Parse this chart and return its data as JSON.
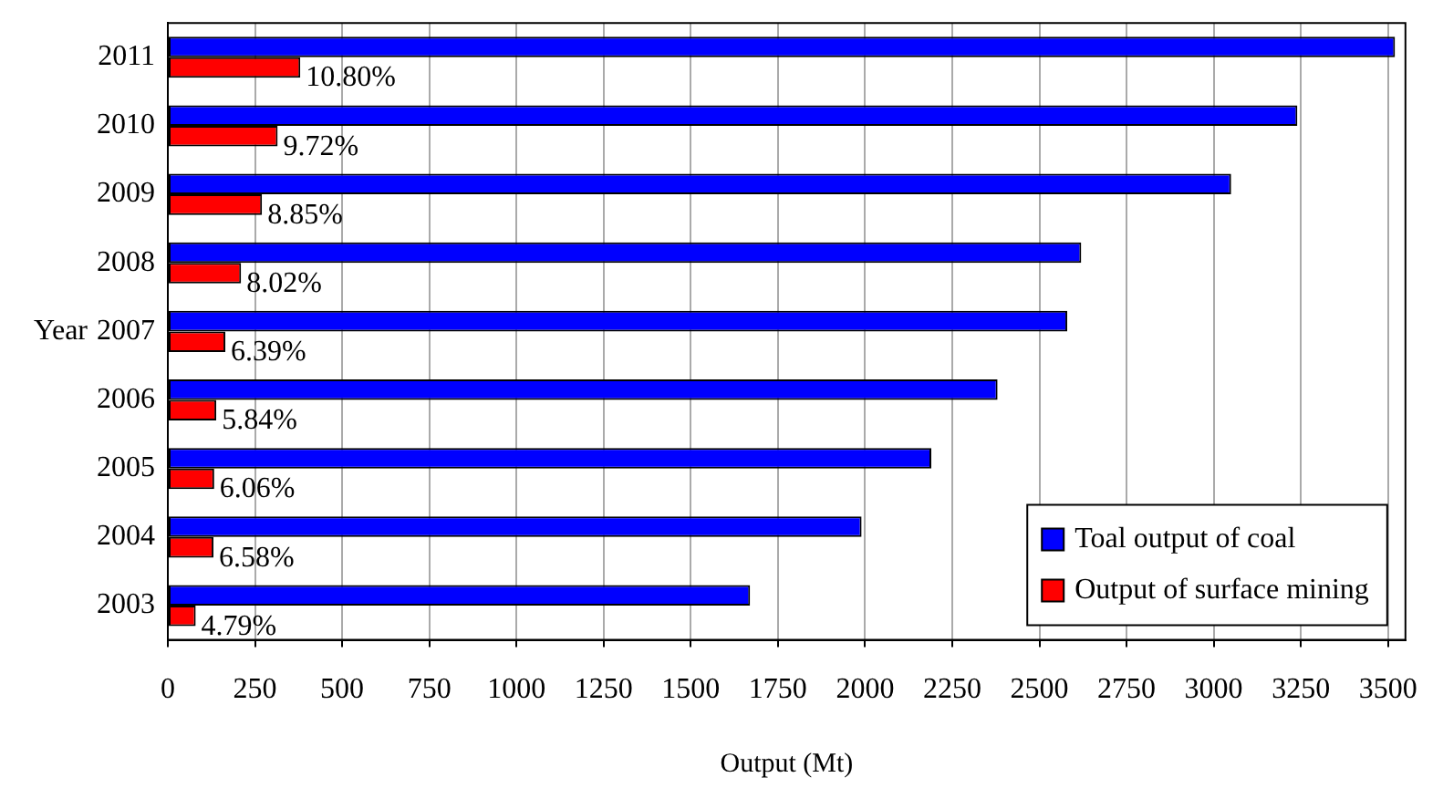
{
  "chart_data": {
    "type": "bar",
    "orientation": "horizontal",
    "xlabel": "Output (Mt)",
    "ylabel": "Year",
    "categories": [
      "2011",
      "2010",
      "2009",
      "2008",
      "2007",
      "2006",
      "2005",
      "2004",
      "2003"
    ],
    "series": [
      {
        "name": "Toal output of coal",
        "color": "#0000ff",
        "values": [
          3520,
          3240,
          3050,
          2620,
          2580,
          2380,
          2190,
          1990,
          1670
        ]
      },
      {
        "name": "Output of surface mining",
        "color": "#ff0000",
        "values": [
          380,
          315,
          270,
          210,
          165,
          139,
          133,
          131,
          80
        ]
      }
    ],
    "annotations": [
      {
        "text": "10.80%",
        "y": "2011"
      },
      {
        "text": "9.72%",
        "y": "2010"
      },
      {
        "text": "8.85%",
        "y": "2009"
      },
      {
        "text": "8.02%",
        "y": "2008"
      },
      {
        "text": "6.39%",
        "y": "2007"
      },
      {
        "text": "5.84%",
        "y": "2006"
      },
      {
        "text": "6.06%",
        "y": "2005"
      },
      {
        "text": "6.58%",
        "y": "2004"
      },
      {
        "text": "4.79%",
        "y": "2003"
      }
    ],
    "xlim": [
      0,
      3550
    ],
    "xticks": [
      0,
      250,
      500,
      750,
      1000,
      1250,
      1500,
      1750,
      2000,
      2250,
      2500,
      2750,
      3000,
      3250,
      3500
    ],
    "grid": "x",
    "legend": "bottom right"
  }
}
